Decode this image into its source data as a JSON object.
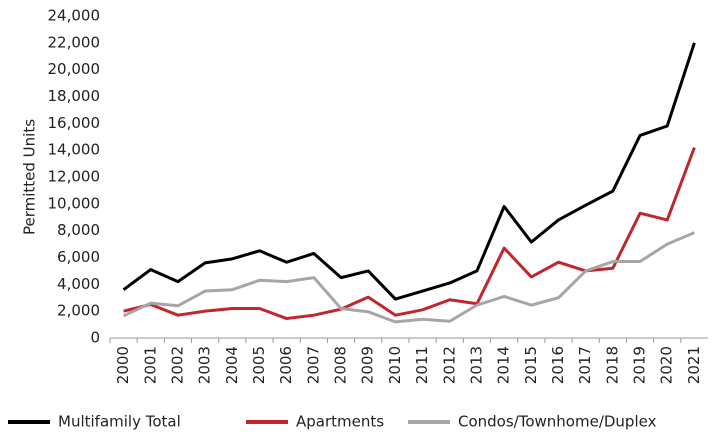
{
  "chart_data": {
    "type": "line",
    "ylabel": "Permitted Units",
    "categories": [
      "2000",
      "2001",
      "2002",
      "2003",
      "2004",
      "2005",
      "2006",
      "2007",
      "2008",
      "2009",
      "2010",
      "2011",
      "2012",
      "2013",
      "2014",
      "2015",
      "2016",
      "2017",
      "2018",
      "2019",
      "2020",
      "2021"
    ],
    "series": [
      {
        "name": "Multifamily Total",
        "color": "#000000",
        "values": [
          3600,
          5100,
          4200,
          5600,
          5900,
          6500,
          5650,
          6300,
          4500,
          5000,
          2900,
          3500,
          4100,
          5000,
          9800,
          7150,
          8800,
          9900,
          10950,
          15100,
          15800,
          22000
        ]
      },
      {
        "name": "Apartments",
        "color": "#c0272d",
        "values": [
          2000,
          2500,
          1700,
          2000,
          2200,
          2200,
          1450,
          1700,
          2150,
          3050,
          1700,
          2100,
          2850,
          2550,
          6700,
          4550,
          5650,
          5000,
          5200,
          9300,
          8800,
          14200
        ]
      },
      {
        "name": "Condos/Townhome/Duplex",
        "color": "#a6a6a6",
        "values": [
          1650,
          2600,
          2400,
          3500,
          3600,
          4300,
          4200,
          4500,
          2200,
          1950,
          1200,
          1400,
          1250,
          2450,
          3100,
          2450,
          3000,
          5000,
          5700,
          5700,
          7000,
          7850
        ]
      }
    ],
    "ylim": [
      0,
      24000
    ],
    "yticks": [
      0,
      {
        "value": 2000,
        "label": "2,000"
      },
      {
        "value": 4000,
        "label": "4,000"
      },
      {
        "value": 6000,
        "label": "6,000"
      },
      {
        "value": 8000,
        "label": "8,000"
      },
      {
        "value": 10000,
        "label": "10,000"
      },
      {
        "value": 12000,
        "label": "12,000"
      },
      {
        "value": 14000,
        "label": "14,000"
      },
      {
        "value": 16000,
        "label": "16,000"
      },
      {
        "value": 18000,
        "label": "18,000"
      },
      {
        "value": 20000,
        "label": "20,000"
      },
      {
        "value": 22000,
        "label": "22,000"
      },
      {
        "value": 24000,
        "label": "24,000"
      }
    ],
    "grid": false,
    "legend": "bottom"
  }
}
